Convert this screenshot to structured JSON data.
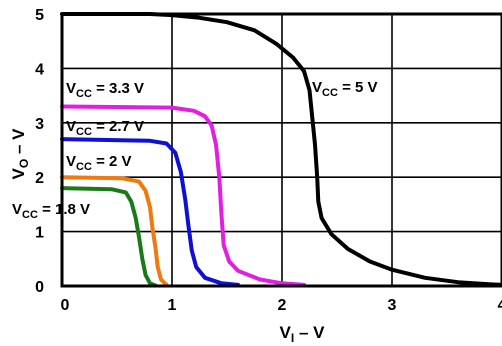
{
  "chart_data": {
    "type": "line",
    "xlabel": "V",
    "xlabel_sub": "I",
    "xlabel_suffix": " – V",
    "ylabel": "V",
    "ylabel_sub": "O",
    "ylabel_suffix": " – V",
    "xlim": [
      0,
      4
    ],
    "ylim": [
      0,
      5
    ],
    "x_ticks": [
      "0",
      "1",
      "2",
      "3",
      "4"
    ],
    "y_ticks": [
      "0",
      "1",
      "2",
      "3",
      "4",
      "5"
    ],
    "grid": true,
    "series": [
      {
        "name": "VCC = 5 V",
        "label_main": "V",
        "label_sub": "CC",
        "label_value": " = 5 V",
        "color": "#000000",
        "points": [
          [
            0,
            5
          ],
          [
            0.8,
            5
          ],
          [
            1.0,
            4.98
          ],
          [
            1.25,
            4.93
          ],
          [
            1.5,
            4.85
          ],
          [
            1.75,
            4.7
          ],
          [
            1.95,
            4.45
          ],
          [
            2.1,
            4.2
          ],
          [
            2.2,
            3.95
          ],
          [
            2.25,
            3.6
          ],
          [
            2.28,
            3.0
          ],
          [
            2.3,
            2.6
          ],
          [
            2.32,
            2.0
          ],
          [
            2.33,
            1.55
          ],
          [
            2.36,
            1.25
          ],
          [
            2.45,
            0.95
          ],
          [
            2.6,
            0.68
          ],
          [
            2.8,
            0.45
          ],
          [
            3.0,
            0.3
          ],
          [
            3.3,
            0.15
          ],
          [
            3.6,
            0.07
          ],
          [
            3.9,
            0.03
          ],
          [
            4.0,
            0.02
          ]
        ]
      },
      {
        "name": "VCC = 3.3 V",
        "label_main": "V",
        "label_sub": "CC",
        "label_value": " = 3.3 V",
        "color": "#E020E0",
        "points": [
          [
            0,
            3.3
          ],
          [
            1.0,
            3.28
          ],
          [
            1.2,
            3.22
          ],
          [
            1.3,
            3.12
          ],
          [
            1.36,
            2.95
          ],
          [
            1.4,
            2.6
          ],
          [
            1.43,
            2.0
          ],
          [
            1.45,
            1.3
          ],
          [
            1.47,
            0.75
          ],
          [
            1.52,
            0.45
          ],
          [
            1.6,
            0.28
          ],
          [
            1.8,
            0.12
          ],
          [
            2.0,
            0.05
          ],
          [
            2.2,
            0.02
          ]
        ]
      },
      {
        "name": "VCC = 2.7 V",
        "label_main": "V",
        "label_sub": "CC",
        "label_value": " = 2.7 V",
        "color": "#1010D0",
        "points": [
          [
            0,
            2.7
          ],
          [
            0.8,
            2.67
          ],
          [
            0.95,
            2.62
          ],
          [
            1.03,
            2.45
          ],
          [
            1.08,
            2.1
          ],
          [
            1.12,
            1.6
          ],
          [
            1.15,
            1.1
          ],
          [
            1.18,
            0.65
          ],
          [
            1.22,
            0.35
          ],
          [
            1.3,
            0.15
          ],
          [
            1.45,
            0.05
          ],
          [
            1.6,
            0.02
          ]
        ]
      },
      {
        "name": "VCC = 2 V",
        "label_main": "V",
        "label_sub": "CC",
        "label_value": " = 2 V",
        "color": "#EE7A10",
        "points": [
          [
            0,
            2.0
          ],
          [
            0.55,
            1.98
          ],
          [
            0.7,
            1.92
          ],
          [
            0.76,
            1.75
          ],
          [
            0.8,
            1.45
          ],
          [
            0.82,
            1.1
          ],
          [
            0.85,
            0.7
          ],
          [
            0.87,
            0.35
          ],
          [
            0.9,
            0.12
          ],
          [
            0.95,
            0.02
          ]
        ]
      },
      {
        "name": "VCC = 1.8 V",
        "label_main": "V",
        "label_sub": "CC",
        "label_value": " = 1.8 V",
        "color": "#1A7A1A",
        "points": [
          [
            0,
            1.8
          ],
          [
            0.45,
            1.78
          ],
          [
            0.58,
            1.72
          ],
          [
            0.63,
            1.55
          ],
          [
            0.67,
            1.25
          ],
          [
            0.7,
            0.9
          ],
          [
            0.73,
            0.5
          ],
          [
            0.76,
            0.2
          ],
          [
            0.8,
            0.05
          ],
          [
            0.85,
            0.01
          ]
        ]
      }
    ]
  }
}
